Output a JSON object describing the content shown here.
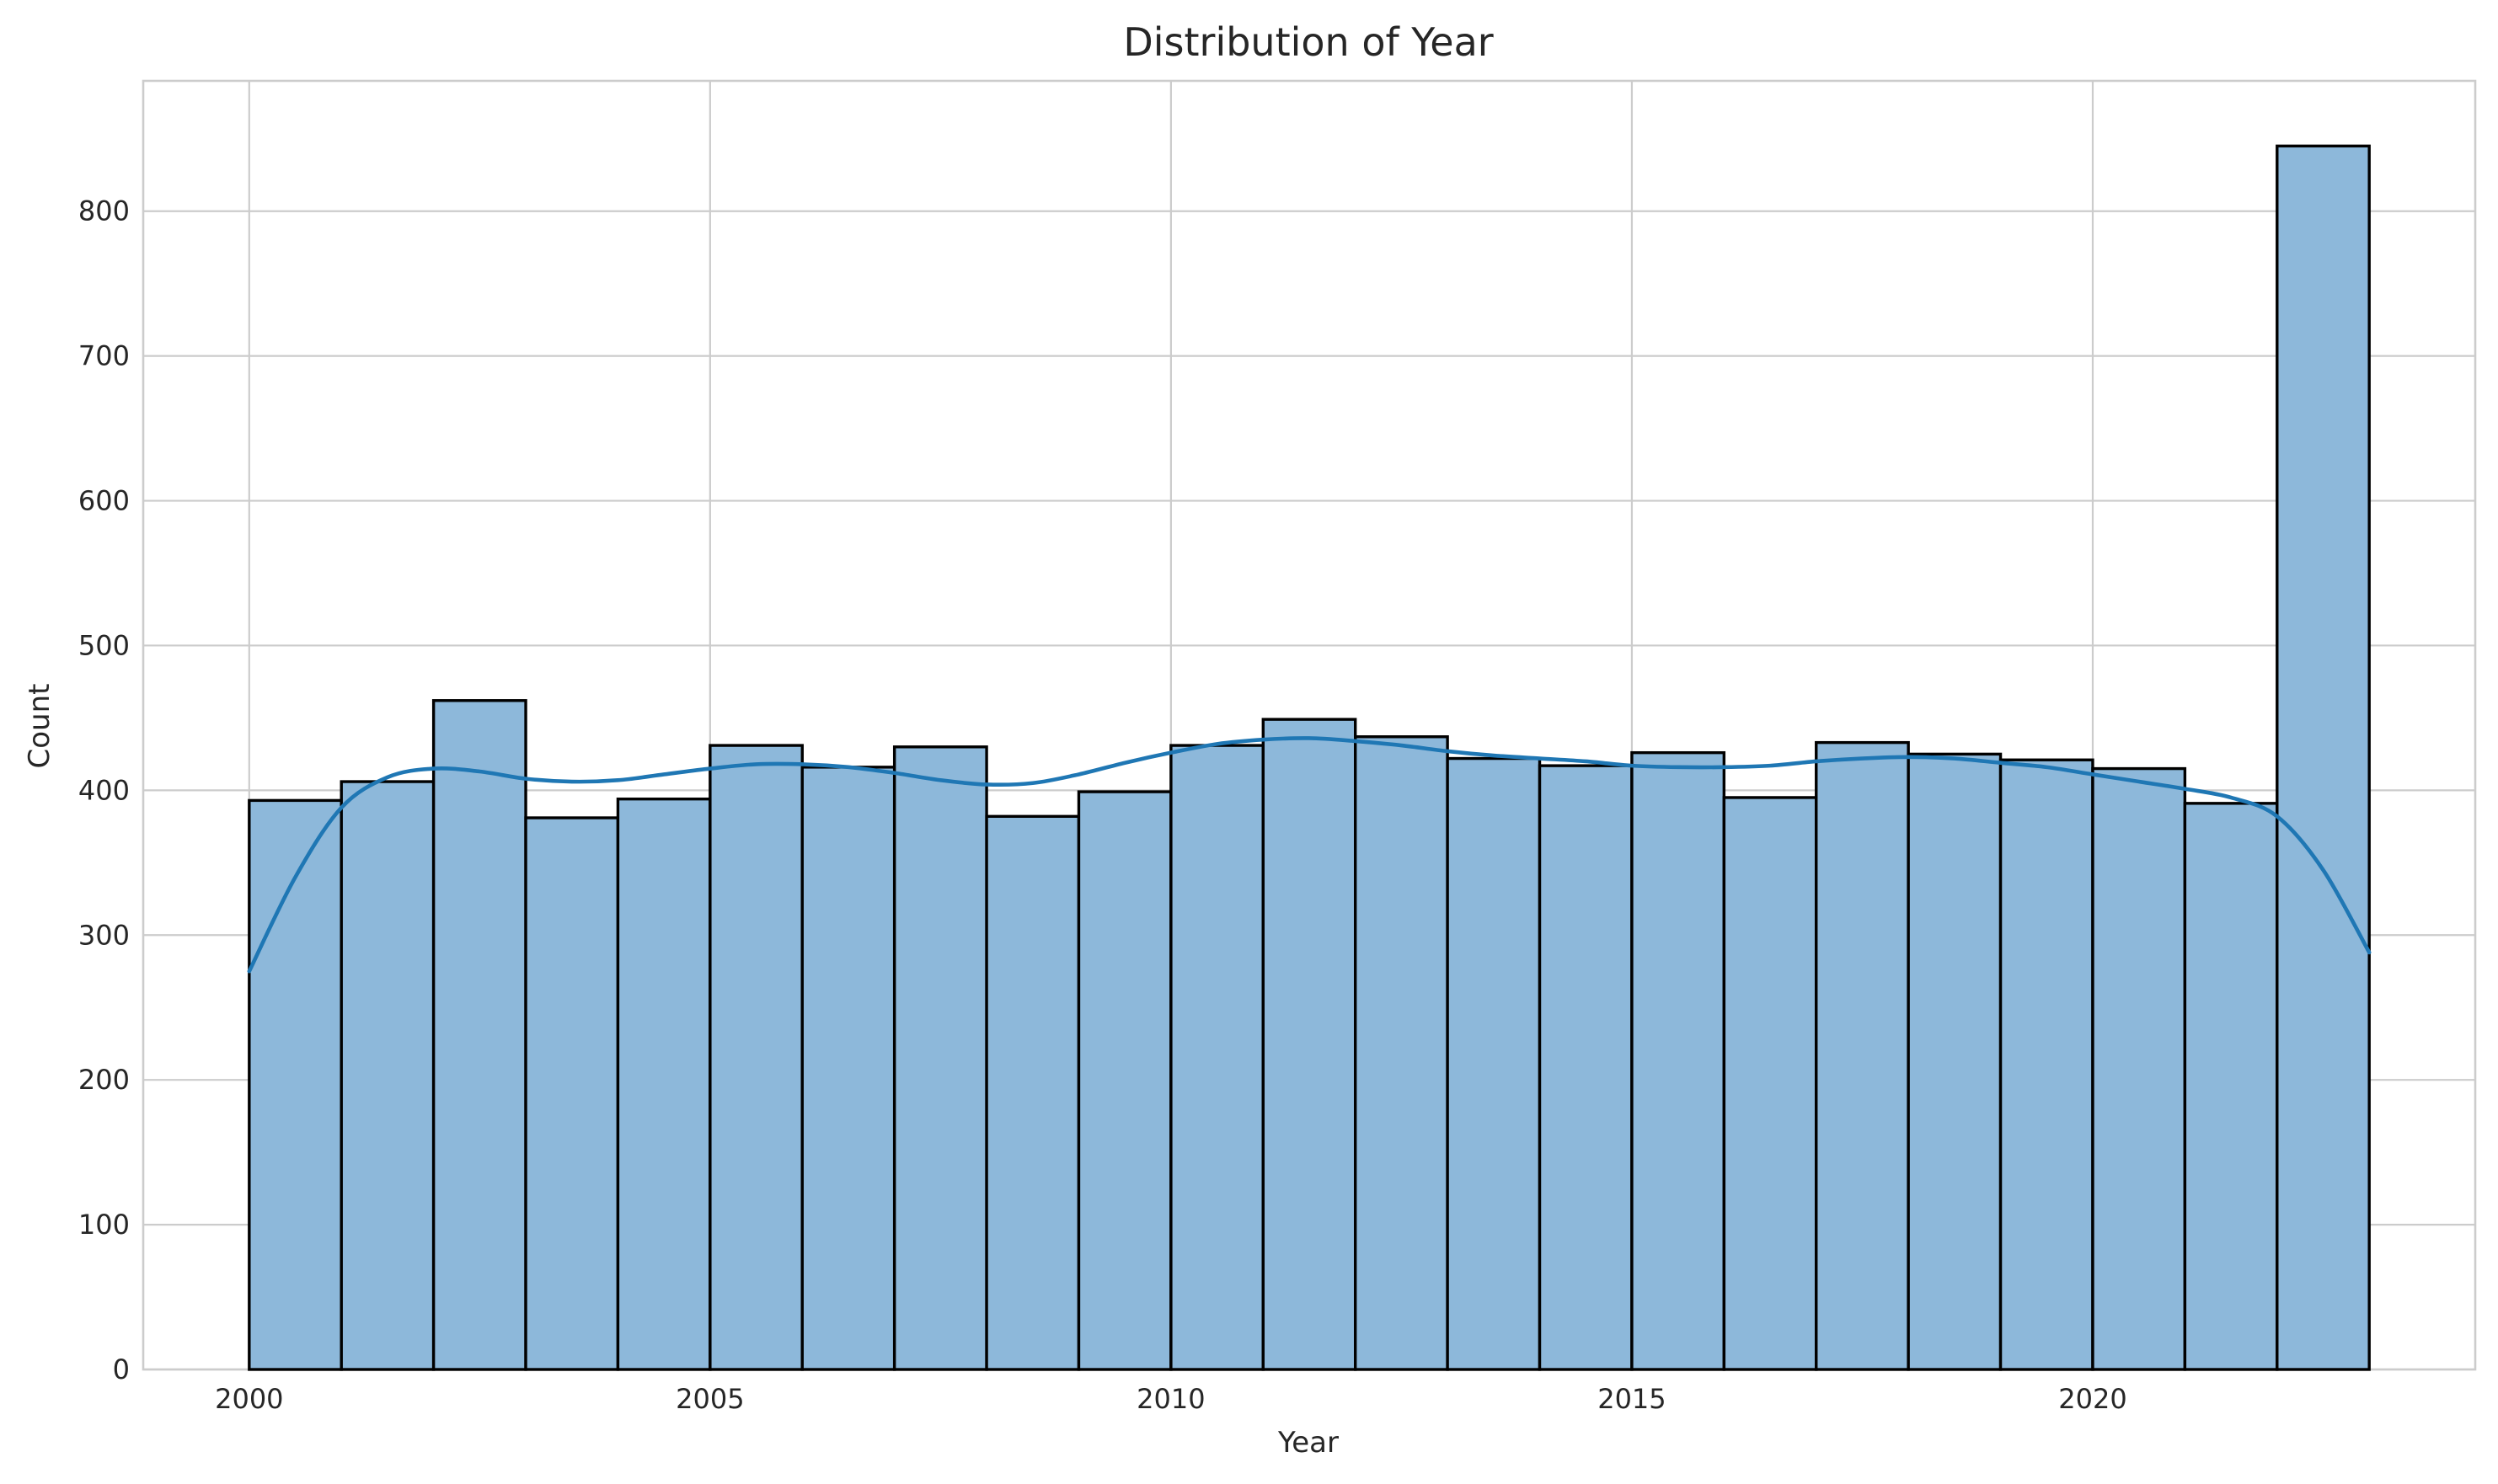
{
  "chart_data": {
    "type": "bar",
    "subtype": "histogram",
    "title": "Distribution of Year",
    "xlabel": "Year",
    "ylabel": "Count",
    "xlim": [
      1998.85,
      2024.15
    ],
    "ylim": [
      0,
      890
    ],
    "xticks": [
      2000,
      2005,
      2010,
      2015,
      2020
    ],
    "yticks": [
      0,
      100,
      200,
      300,
      400,
      500,
      600,
      700,
      800
    ],
    "grid": true,
    "bin_edges": [
      2000.0,
      2001.0,
      2002.0,
      2003.0,
      2004.0,
      2005.0,
      2006.0,
      2007.0,
      2008.0,
      2009.0,
      2010.0,
      2011.0,
      2012.0,
      2013.0,
      2014.0,
      2015.0,
      2016.0,
      2017.0,
      2018.0,
      2019.0,
      2020.0,
      2021.0,
      2022.0,
      2023.0
    ],
    "values": [
      393,
      406,
      462,
      381,
      394,
      431,
      416,
      430,
      382,
      399,
      431,
      449,
      437,
      422,
      417,
      426,
      395,
      433,
      425,
      421,
      415,
      391,
      845
    ],
    "kde": {
      "x": [
        2000.0,
        2000.5,
        2001.0,
        2001.5,
        2002.0,
        2002.5,
        2003.0,
        2003.5,
        2004.0,
        2004.5,
        2005.0,
        2005.5,
        2006.0,
        2006.5,
        2007.0,
        2007.5,
        2008.0,
        2008.5,
        2009.0,
        2009.5,
        2010.0,
        2010.5,
        2011.0,
        2011.5,
        2012.0,
        2012.5,
        2013.0,
        2013.5,
        2014.0,
        2014.5,
        2015.0,
        2015.5,
        2016.0,
        2016.5,
        2017.0,
        2017.5,
        2018.0,
        2018.5,
        2019.0,
        2019.5,
        2020.0,
        2020.5,
        2021.0,
        2021.5,
        2022.0,
        2022.5,
        2023.0
      ],
      "y": [
        275,
        340,
        388,
        409,
        415,
        413,
        408,
        406,
        407,
        411,
        415,
        418,
        418,
        416,
        412,
        407,
        404,
        405,
        411,
        419,
        426,
        432,
        435,
        436,
        434,
        431,
        427,
        424,
        422,
        420,
        417,
        416,
        416,
        417,
        420,
        422,
        423,
        422,
        419,
        416,
        411,
        406,
        401,
        395,
        382,
        345,
        288
      ]
    },
    "colors": {
      "bar_fill": "#8db8da",
      "bar_edge": "#000000",
      "kde_line": "#1f77b4",
      "grid": "#cccccc",
      "background": "#ffffff"
    }
  }
}
